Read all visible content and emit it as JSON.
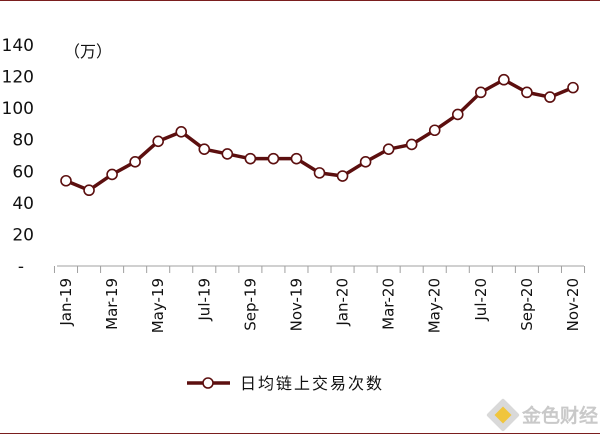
{
  "chart_data": {
    "type": "line",
    "unit_label": "（万）",
    "ylim": [
      0,
      140
    ],
    "yticks": [
      {
        "value": 0,
        "label": "-"
      },
      {
        "value": 20,
        "label": "20"
      },
      {
        "value": 40,
        "label": "40"
      },
      {
        "value": 60,
        "label": "60"
      },
      {
        "value": 80,
        "label": "80"
      },
      {
        "value": 100,
        "label": "100"
      },
      {
        "value": 120,
        "label": "120"
      },
      {
        "value": 140,
        "label": "140"
      }
    ],
    "x": [
      "Jan-19",
      "Feb-19",
      "Mar-19",
      "Apr-19",
      "May-19",
      "Jun-19",
      "Jul-19",
      "Aug-19",
      "Sep-19",
      "Oct-19",
      "Nov-19",
      "Dec-19",
      "Jan-20",
      "Feb-20",
      "Mar-20",
      "Apr-20",
      "May-20",
      "Jun-20",
      "Jul-20",
      "Aug-20",
      "Sep-20",
      "Oct-20",
      "Nov-20"
    ],
    "xtick_labels": [
      "Jan-19",
      "Mar-19",
      "May-19",
      "Jul-19",
      "Sep-19",
      "Nov-19",
      "Jan-20",
      "Mar-20",
      "May-20",
      "Jul-20",
      "Sep-20",
      "Nov-20"
    ],
    "series": [
      {
        "name": "日均链上交易次数",
        "color": "#5c0f0f",
        "values": [
          54,
          48,
          58,
          66,
          79,
          85,
          74,
          71,
          68,
          68,
          68,
          59,
          57,
          66,
          74,
          77,
          86,
          96,
          110,
          118,
          110,
          107,
          113
        ]
      }
    ],
    "grid": false,
    "legend_position": "bottom"
  },
  "watermark": {
    "text": "金色财经",
    "icon": "gold-diamond-logo"
  }
}
